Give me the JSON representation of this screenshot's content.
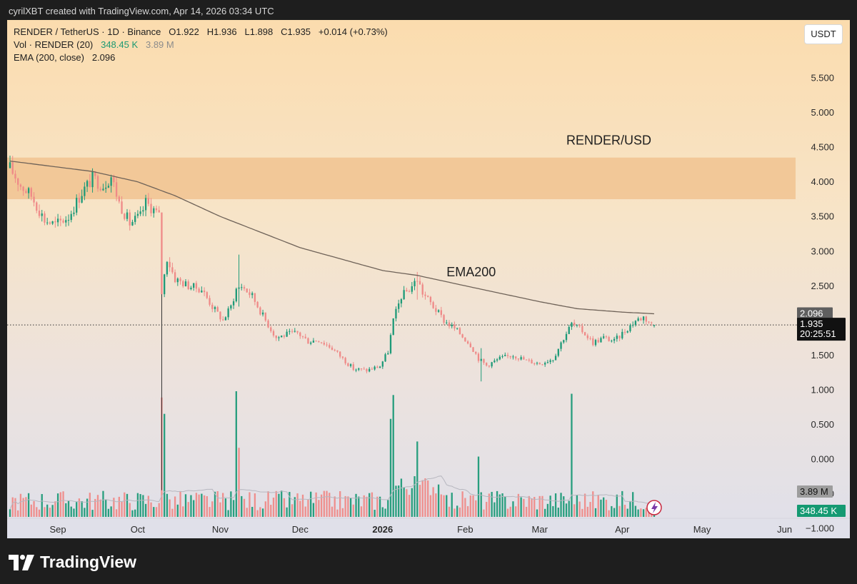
{
  "caption": "cyrilXBT created with TradingView.com, Apr 14, 2026 03:34 UTC",
  "brand": "TradingView",
  "legend": {
    "symbol_line": "RENDER / TetherUS · 1D · Binance",
    "open": "O1.922",
    "high": "H1.936",
    "low": "L1.898",
    "close": "C1.935",
    "change": "+0.014 (+0.73%)",
    "vol_label": "Vol · RENDER (20)",
    "vol_value": "348.45 K",
    "vol_ma_value": "3.89 M",
    "ema_label": "EMA (200, close)",
    "ema_value": "2.096"
  },
  "unit_button": "USDT",
  "colors": {
    "up": "#1e9a78",
    "down": "#ef8a88",
    "ema": "#6e6258",
    "zone": "#f1c391",
    "volume_ma": "#b7b7bf"
  },
  "chart_data": {
    "type": "candlestick",
    "title": "RENDER/USD",
    "symbol": "RENDER / TetherUS",
    "interval": "1D",
    "exchange": "Binance",
    "ylim": [
      -1.0,
      5.8
    ],
    "y_ticks": [
      "5.500",
      "5.000",
      "4.500",
      "4.000",
      "3.500",
      "3.000",
      "2.500",
      "2.000",
      "1.500",
      "1.000",
      "0.500",
      "0.000",
      "−0.500",
      "−1.000"
    ],
    "x_ticks": [
      {
        "label": "Sep",
        "date": "2025-09-01"
      },
      {
        "label": "Oct",
        "date": "2025-10-01"
      },
      {
        "label": "Nov",
        "date": "2025-11-01"
      },
      {
        "label": "Dec",
        "date": "2025-12-01"
      },
      {
        "label": "2026",
        "date": "2026-01-01",
        "bold": true
      },
      {
        "label": "Feb",
        "date": "2026-02-01"
      },
      {
        "label": "Mar",
        "date": "2026-03-01"
      },
      {
        "label": "Apr",
        "date": "2026-04-01"
      },
      {
        "label": "May",
        "date": "2026-05-01"
      },
      {
        "label": "Jun",
        "date": "2026-06-01"
      }
    ],
    "price_anchors": [
      [
        "2025-08-14",
        4.2
      ],
      [
        "2025-08-18",
        3.95
      ],
      [
        "2025-08-22",
        3.8
      ],
      [
        "2025-08-27",
        3.45
      ],
      [
        "2025-08-31",
        3.38
      ],
      [
        "2025-09-05",
        3.5
      ],
      [
        "2025-09-10",
        3.85
      ],
      [
        "2025-09-14",
        4.05
      ],
      [
        "2025-09-18",
        3.95
      ],
      [
        "2025-09-21",
        4.08
      ],
      [
        "2025-09-24",
        3.7
      ],
      [
        "2025-09-28",
        3.4
      ],
      [
        "2025-10-02",
        3.5
      ],
      [
        "2025-10-04",
        3.7
      ],
      [
        "2025-10-07",
        3.6
      ],
      [
        "2025-10-09",
        3.5
      ],
      [
        "2025-10-10",
        2.4
      ],
      [
        "2025-10-12",
        2.9
      ],
      [
        "2025-10-15",
        2.6
      ],
      [
        "2025-10-20",
        2.5
      ],
      [
        "2025-10-25",
        2.45
      ],
      [
        "2025-10-29",
        2.2
      ],
      [
        "2025-11-02",
        2.0
      ],
      [
        "2025-11-05",
        2.2
      ],
      [
        "2025-11-07",
        2.45
      ],
      [
        "2025-11-09",
        2.5
      ],
      [
        "2025-11-13",
        2.35
      ],
      [
        "2025-11-18",
        2.0
      ],
      [
        "2025-11-22",
        1.75
      ],
      [
        "2025-11-26",
        1.8
      ],
      [
        "2025-11-30",
        1.82
      ],
      [
        "2025-12-04",
        1.7
      ],
      [
        "2025-12-08",
        1.72
      ],
      [
        "2025-12-13",
        1.6
      ],
      [
        "2025-12-17",
        1.45
      ],
      [
        "2025-12-21",
        1.3
      ],
      [
        "2025-12-26",
        1.28
      ],
      [
        "2025-12-31",
        1.34
      ],
      [
        "2026-01-03",
        1.55
      ],
      [
        "2026-01-05",
        2.0
      ],
      [
        "2026-01-08",
        2.35
      ],
      [
        "2026-01-11",
        2.45
      ],
      [
        "2026-01-14",
        2.6
      ],
      [
        "2026-01-16",
        2.4
      ],
      [
        "2026-01-20",
        2.2
      ],
      [
        "2026-01-24",
        2.0
      ],
      [
        "2026-01-29",
        1.85
      ],
      [
        "2026-02-03",
        1.65
      ],
      [
        "2026-02-06",
        1.45
      ],
      [
        "2026-02-09",
        1.35
      ],
      [
        "2026-02-14",
        1.45
      ],
      [
        "2026-02-19",
        1.5
      ],
      [
        "2026-02-24",
        1.42
      ],
      [
        "2026-03-01",
        1.38
      ],
      [
        "2026-03-06",
        1.45
      ],
      [
        "2026-03-10",
        1.75
      ],
      [
        "2026-03-13",
        1.95
      ],
      [
        "2026-03-17",
        1.85
      ],
      [
        "2026-03-21",
        1.68
      ],
      [
        "2026-03-25",
        1.75
      ],
      [
        "2026-03-29",
        1.7
      ],
      [
        "2026-04-02",
        1.85
      ],
      [
        "2026-04-06",
        2.0
      ],
      [
        "2026-04-09",
        2.05
      ],
      [
        "2026-04-12",
        1.95
      ],
      [
        "2026-04-13",
        1.922
      ]
    ],
    "ema200_anchors": [
      [
        "2025-08-14",
        4.3
      ],
      [
        "2025-09-14",
        4.15
      ],
      [
        "2025-10-01",
        4.0
      ],
      [
        "2025-10-15",
        3.8
      ],
      [
        "2025-11-01",
        3.5
      ],
      [
        "2025-12-01",
        3.05
      ],
      [
        "2026-01-01",
        2.72
      ],
      [
        "2026-01-14",
        2.65
      ],
      [
        "2026-02-01",
        2.5
      ],
      [
        "2026-03-01",
        2.27
      ],
      [
        "2026-03-15",
        2.17
      ],
      [
        "2026-04-01",
        2.12
      ],
      [
        "2026-04-13",
        2.096
      ]
    ],
    "notable_candles": [
      {
        "date": "2025-10-10",
        "low": -0.45,
        "high": 2.8
      },
      {
        "date": "2025-11-08",
        "low": 2.2,
        "high": 2.95
      },
      {
        "date": "2026-01-14",
        "low": 2.3,
        "high": 2.7
      },
      {
        "date": "2026-02-07",
        "low": 1.12,
        "high": 1.6
      },
      {
        "date": "2026-04-13",
        "open": 1.922,
        "high": 1.936,
        "low": 1.898,
        "close": 1.935
      }
    ],
    "resistance_zone": [
      3.75,
      4.35
    ],
    "current_price": {
      "value": 1.935,
      "label": "1.935",
      "countdown": "20:25:51"
    },
    "ema_price_label": "2.096",
    "volume": {
      "current_label": "348.45 K",
      "ma_label": "3.89 M",
      "spikes": [
        {
          "date": "2025-10-10",
          "rel": 0.95,
          "up": false
        },
        {
          "date": "2025-10-11",
          "rel": 0.82,
          "up": true
        },
        {
          "date": "2025-11-07",
          "rel": 1.0,
          "up": true
        },
        {
          "date": "2025-11-08",
          "rel": 0.55,
          "up": false
        },
        {
          "date": "2026-01-04",
          "rel": 0.78,
          "up": true
        },
        {
          "date": "2026-01-05",
          "rel": 0.97,
          "up": true
        },
        {
          "date": "2026-01-14",
          "rel": 0.6,
          "up": true
        },
        {
          "date": "2026-02-06",
          "rel": 0.48,
          "up": true
        },
        {
          "date": "2026-03-13",
          "rel": 0.98,
          "up": true
        }
      ]
    },
    "annotations": [
      {
        "text": "RENDER/USD",
        "date": "2026-03-11",
        "price": 4.6
      },
      {
        "text": "EMA200",
        "date": "2026-01-25",
        "price": 2.7
      }
    ]
  }
}
